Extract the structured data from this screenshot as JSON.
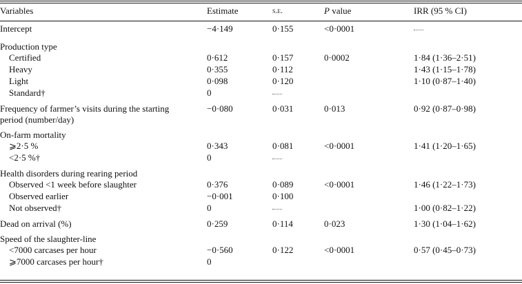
{
  "header": {
    "variables": "Variables",
    "estimate": "Estimate",
    "se": "s.e.",
    "p_italic": "P",
    "p_rest": " value",
    "irr": "IRR (95 % CI)"
  },
  "rows": {
    "intercept": {
      "label": "Intercept",
      "estimate": "−4·149",
      "se": "0·155",
      "p": "<0·0001"
    },
    "production": {
      "label": "Production type",
      "certified": {
        "label": "Certified",
        "estimate": "0·612",
        "se": "0·157",
        "p": "0·0002",
        "irr": "1·84 (1·36–2·51)"
      },
      "heavy": {
        "label": "Heavy",
        "estimate": "0·355",
        "se": "0·112",
        "irr": "1·43 (1·15–1·78)"
      },
      "light": {
        "label": "Light",
        "estimate": "0·098",
        "se": "0·120",
        "irr": "1·10 (0·87–1·40)"
      },
      "standard": {
        "label": "Standard†",
        "estimate": "0"
      }
    },
    "visits": {
      "label": "Frequency of farmer’s visits during the starting period (number/day)",
      "estimate": "−0·080",
      "se": "0·031",
      "p": "0·013",
      "irr": "0·92 (0·87–0·98)"
    },
    "mortality": {
      "label": "On-farm mortality",
      "high": {
        "label": "⩾2·5 %",
        "estimate": "0·343",
        "se": "0·081",
        "p": "<0·0001",
        "irr": "1·41 (1·20–1·65)"
      },
      "low": {
        "label": "<2·5 %†",
        "estimate": "0"
      }
    },
    "health": {
      "label": "Health disorders during rearing period",
      "before": {
        "label": "Observed <1 week before slaughter",
        "estimate": "0·376",
        "se": "0·089",
        "p": "<0·0001",
        "irr": "1·46 (1·22–1·73)"
      },
      "earlier": {
        "label": "Observed earlier",
        "estimate": "−0·001",
        "se": "0·100"
      },
      "not": {
        "label": "Not observed†",
        "estimate": "0",
        "irr": "1·00 (0·82–1·22)"
      }
    },
    "doa": {
      "label": "Dead on arrival (%)",
      "estimate": "0·259",
      "se": "0·114",
      "p": "0·023",
      "irr": "1·30 (1·04–1·62)"
    },
    "speed": {
      "label": "Speed of the slaughter-line",
      "low": {
        "label": "<7000 carcases per hour",
        "estimate": "−0·560",
        "se": "0·122",
        "p": "<0·0001",
        "irr": "0·57 (0·45–0·73)"
      },
      "high": {
        "label": "⩾7000 carcases per hour†",
        "estimate": "0"
      }
    }
  }
}
